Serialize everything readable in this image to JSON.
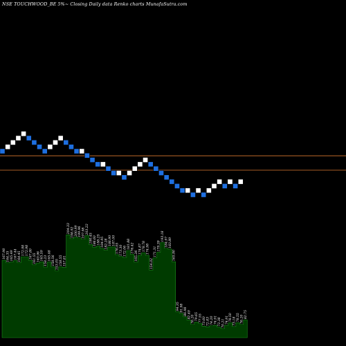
{
  "title": "NSE TOUCHWOOD_BE 5%~  Closing Daily data  Renko  charts MunafaSutra.com",
  "colors": {
    "background": "#000000",
    "brick_up": "#ffffff",
    "brick_down": "#1e6fe0",
    "brick_border": "#000000",
    "level_line": "#c06a2a",
    "volume_fill": "#003b00",
    "volume_stroke": "#1c8c1c",
    "label_text": "#ffffff"
  },
  "chart_data": {
    "type": "renko",
    "brick_pct": 5,
    "bricks": [
      {
        "dir": "down",
        "level": 0
      },
      {
        "dir": "up",
        "level": 1
      },
      {
        "dir": "up",
        "level": 2
      },
      {
        "dir": "up",
        "level": 3
      },
      {
        "dir": "up",
        "level": 4
      },
      {
        "dir": "down",
        "level": 3
      },
      {
        "dir": "down",
        "level": 2
      },
      {
        "dir": "down",
        "level": 1
      },
      {
        "dir": "down",
        "level": 0
      },
      {
        "dir": "up",
        "level": 1
      },
      {
        "dir": "up",
        "level": 2
      },
      {
        "dir": "up",
        "level": 3
      },
      {
        "dir": "down",
        "level": 2
      },
      {
        "dir": "down",
        "level": 1
      },
      {
        "dir": "down",
        "level": 0
      },
      {
        "dir": "up",
        "level": 0
      },
      {
        "dir": "down",
        "level": -1
      },
      {
        "dir": "down",
        "level": -2
      },
      {
        "dir": "down",
        "level": -3
      },
      {
        "dir": "up",
        "level": -3
      },
      {
        "dir": "down",
        "level": -4
      },
      {
        "dir": "down",
        "level": -5
      },
      {
        "dir": "up",
        "level": -5
      },
      {
        "dir": "down",
        "level": -6
      },
      {
        "dir": "up",
        "level": -5
      },
      {
        "dir": "up",
        "level": -4
      },
      {
        "dir": "up",
        "level": -3
      },
      {
        "dir": "up",
        "level": -2
      },
      {
        "dir": "down",
        "level": -3
      },
      {
        "dir": "down",
        "level": -4
      },
      {
        "dir": "down",
        "level": -5
      },
      {
        "dir": "down",
        "level": -6
      },
      {
        "dir": "down",
        "level": -7
      },
      {
        "dir": "down",
        "level": -8
      },
      {
        "dir": "down",
        "level": -9
      },
      {
        "dir": "up",
        "level": -9
      },
      {
        "dir": "down",
        "level": -10
      },
      {
        "dir": "up",
        "level": -9
      },
      {
        "dir": "down",
        "level": -10
      },
      {
        "dir": "up",
        "level": -9
      },
      {
        "dir": "up",
        "level": -8
      },
      {
        "dir": "up",
        "level": -7
      },
      {
        "dir": "down",
        "level": -8
      },
      {
        "dir": "up",
        "level": -7
      },
      {
        "dir": "down",
        "level": -8
      },
      {
        "dir": "up",
        "level": -7
      }
    ],
    "reference_levels": [
      -1.05,
      -4.35
    ],
    "volume_labels": [
      "167.98",
      "164.35",
      "165.49",
      "167.44",
      "164.45",
      "172.98",
      "172.98",
      "167.80",
      "161.55",
      "163.96",
      "165.59",
      "158.23",
      "165.48",
      "158.56",
      "153.05",
      "158.55",
      "157.81",
      "204.33",
      "198.92",
      "200.99",
      "199.96",
      "197.98",
      "203.22",
      "190.45",
      "186.60",
      "188.25",
      "184.95",
      "182.28",
      "186.90",
      "187.00",
      "176.05",
      "173.30",
      "172.06",
      "181.88",
      "176.42",
      "165.26",
      "174.87",
      "178.78",
      "174.98",
      "154.02",
      "171.31",
      "179.39",
      "193.18",
      "184.97",
      "183.89",
      "165.90",
      "94.35",
      "91.98",
      "86.98",
      "82.49",
      "76.20",
      "79.65",
      "77.55",
      "73.60",
      "72.83",
      "74.20",
      "74.91",
      "72.38",
      "70.21",
      "74.91",
      "78.50",
      "73.18",
      "78.55",
      "76.20",
      "82.75"
    ]
  }
}
